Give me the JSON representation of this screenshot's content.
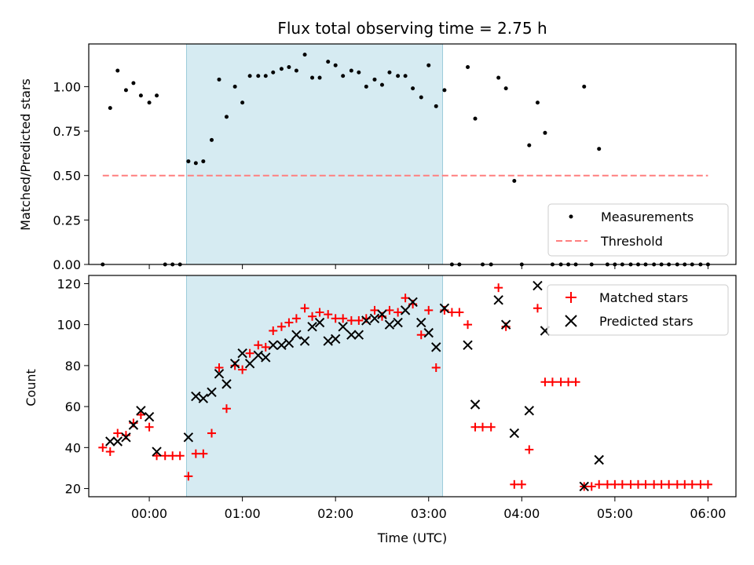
{
  "chart_data": [
    {
      "type": "scatter",
      "title": "Flux total observing time = 2.75 h",
      "xlabel": "",
      "ylabel": "Matched/Predicted stars",
      "xlim": [
        -0.65,
        6.3
      ],
      "ylim": [
        0,
        1.24
      ],
      "yticks": [
        0.0,
        0.25,
        0.5,
        0.75,
        1.0
      ],
      "ytick_labels": [
        "0.00",
        "0.25",
        "0.50",
        "0.75",
        "1.00"
      ],
      "x_units": "hours after 00:00 UTC",
      "highlight_span": [
        0.4,
        3.15
      ],
      "legend_placement": "lower-right",
      "series": [
        {
          "name": "Measurements",
          "marker": "dot",
          "color": "#000000",
          "x": [
            -0.5,
            -0.42,
            -0.34,
            -0.25,
            -0.17,
            -0.09,
            0.0,
            0.08,
            0.17,
            0.25,
            0.33,
            0.42,
            0.5,
            0.58,
            0.67,
            0.75,
            0.83,
            0.92,
            1.0,
            1.08,
            1.17,
            1.25,
            1.33,
            1.42,
            1.5,
            1.58,
            1.67,
            1.75,
            1.83,
            1.92,
            2.0,
            2.08,
            2.17,
            2.25,
            2.33,
            2.42,
            2.5,
            2.58,
            2.67,
            2.75,
            2.83,
            2.92,
            3.0,
            3.08,
            3.17,
            3.25,
            3.33,
            3.42,
            3.5,
            3.58,
            3.67,
            3.75,
            3.83,
            3.92,
            4.0,
            4.08,
            4.17,
            4.25,
            4.33,
            4.42,
            4.5,
            4.58,
            4.67,
            4.75,
            4.83,
            4.92,
            5.0,
            5.08,
            5.17,
            5.25,
            5.33,
            5.42,
            5.5,
            5.58,
            5.67,
            5.75,
            5.83,
            5.92,
            6.0
          ],
          "y": [
            0.0,
            0.88,
            1.09,
            0.98,
            1.02,
            0.95,
            0.91,
            0.95,
            0.0,
            0.0,
            0.0,
            0.58,
            0.57,
            0.58,
            0.7,
            1.04,
            0.83,
            1.0,
            0.91,
            1.06,
            1.06,
            1.06,
            1.08,
            1.1,
            1.11,
            1.09,
            1.18,
            1.05,
            1.05,
            1.14,
            1.12,
            1.06,
            1.09,
            1.08,
            1.0,
            1.04,
            1.01,
            1.08,
            1.06,
            1.06,
            0.99,
            0.94,
            1.12,
            0.89,
            0.98,
            0.0,
            0.0,
            1.11,
            0.82,
            0.0,
            0.0,
            1.05,
            0.99,
            0.47,
            0.0,
            0.67,
            0.91,
            0.74,
            0.0,
            0.0,
            0.0,
            0.0,
            1.0,
            0.0,
            0.65,
            0.0,
            0.0,
            0.0,
            0.0,
            0.0,
            0.0,
            0.0,
            0.0,
            0.0,
            0.0,
            0.0,
            0.0,
            0.0,
            0.0
          ]
        },
        {
          "name": "Threshold",
          "marker": "dashed-line",
          "color": "#ff7f7f",
          "x": [
            -0.5,
            6.0
          ],
          "y": [
            0.5,
            0.5
          ]
        }
      ]
    },
    {
      "type": "scatter",
      "title": "",
      "xlabel": "Time (UTC)",
      "ylabel": "Count",
      "xlim": [
        -0.65,
        6.3
      ],
      "ylim": [
        16,
        124
      ],
      "yticks": [
        20,
        40,
        60,
        80,
        100,
        120
      ],
      "ytick_labels": [
        "20",
        "40",
        "60",
        "80",
        "100",
        "120"
      ],
      "xticks": [
        0,
        1,
        2,
        3,
        4,
        5,
        6
      ],
      "xtick_labels": [
        "00:00",
        "01:00",
        "02:00",
        "03:00",
        "04:00",
        "05:00",
        "06:00"
      ],
      "x_units": "hours after 00:00 UTC",
      "highlight_span": [
        0.4,
        3.15
      ],
      "legend_placement": "upper-right",
      "series": [
        {
          "name": "Matched stars",
          "marker": "plus",
          "color": "#ff0000",
          "x": [
            -0.5,
            -0.42,
            -0.34,
            -0.25,
            -0.17,
            -0.09,
            0.0,
            0.08,
            0.17,
            0.25,
            0.33,
            0.42,
            0.5,
            0.58,
            0.67,
            0.75,
            0.83,
            0.92,
            1.0,
            1.08,
            1.17,
            1.25,
            1.33,
            1.42,
            1.5,
            1.58,
            1.67,
            1.75,
            1.83,
            1.92,
            2.0,
            2.08,
            2.17,
            2.25,
            2.33,
            2.42,
            2.5,
            2.58,
            2.67,
            2.75,
            2.83,
            2.92,
            3.0,
            3.08,
            3.17,
            3.25,
            3.33,
            3.42,
            3.5,
            3.58,
            3.67,
            3.75,
            3.83,
            3.92,
            4.0,
            4.08,
            4.17,
            4.25,
            4.33,
            4.42,
            4.5,
            4.58,
            4.67,
            4.75,
            4.83,
            4.92,
            5.0,
            5.08,
            5.17,
            5.25,
            5.33,
            5.42,
            5.5,
            5.58,
            5.67,
            5.75,
            5.83,
            5.92,
            6.0
          ],
          "y": [
            40,
            38,
            47,
            46,
            52,
            56,
            50,
            36,
            36,
            36,
            36,
            26,
            37,
            37,
            47,
            79,
            59,
            80,
            78,
            86,
            90,
            89,
            97,
            99,
            101,
            103,
            108,
            104,
            106,
            105,
            103,
            103,
            102,
            102,
            103,
            107,
            104,
            107,
            106,
            113,
            110,
            95,
            107,
            79,
            107,
            106,
            106,
            100,
            50,
            50,
            50,
            118,
            99,
            22,
            22,
            39,
            108,
            72,
            72,
            72,
            72,
            72,
            21,
            21,
            22,
            22,
            22,
            22,
            22,
            22,
            22,
            22,
            22,
            22,
            22,
            22,
            22,
            22,
            22
          ]
        },
        {
          "name": "Predicted stars",
          "marker": "x",
          "color": "#000000",
          "x": [
            -0.42,
            -0.34,
            -0.25,
            -0.17,
            -0.09,
            0.0,
            0.08,
            0.42,
            0.5,
            0.58,
            0.67,
            0.75,
            0.83,
            0.92,
            1.0,
            1.08,
            1.17,
            1.25,
            1.33,
            1.42,
            1.5,
            1.58,
            1.67,
            1.75,
            1.83,
            1.92,
            2.0,
            2.08,
            2.17,
            2.25,
            2.33,
            2.42,
            2.5,
            2.58,
            2.67,
            2.75,
            2.83,
            2.92,
            3.0,
            3.08,
            3.17,
            3.42,
            3.5,
            3.75,
            3.83,
            3.92,
            4.08,
            4.17,
            4.25,
            4.67,
            4.83
          ],
          "y": [
            43,
            43,
            45,
            51,
            58,
            55,
            38,
            45,
            65,
            64,
            67,
            76,
            71,
            81,
            86,
            81,
            85,
            84,
            90,
            90,
            91,
            95,
            92,
            99,
            101,
            92,
            93,
            99,
            95,
            95,
            102,
            103,
            105,
            100,
            101,
            107,
            111,
            101,
            96,
            89,
            108,
            90,
            61,
            112,
            100,
            47,
            58,
            119,
            97,
            21,
            34
          ]
        }
      ]
    }
  ]
}
